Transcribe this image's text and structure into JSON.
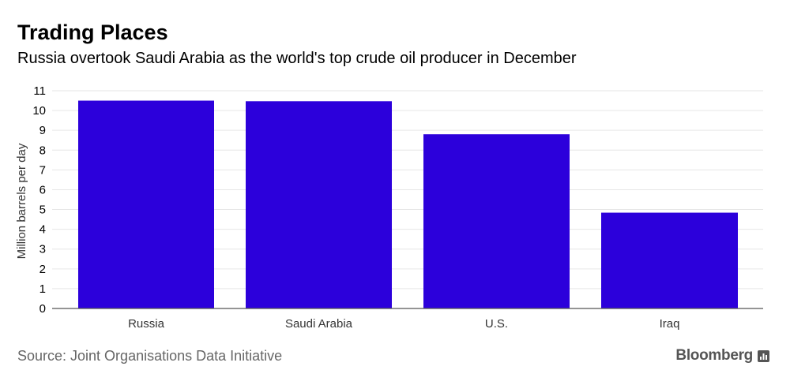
{
  "title": "Trading Places",
  "subtitle": "Russia overtook Saudi Arabia as the world's top crude oil producer in December",
  "source": "Source: Joint Organisations Data Initiative",
  "brand": {
    "name": "Bloomberg",
    "icon": "bloomberg-chart-icon"
  },
  "colors": {
    "bar": "#2c00db",
    "grid": "#e6e6e6",
    "axis": "#555555"
  },
  "chart_data": {
    "type": "bar",
    "categories": [
      "Russia",
      "Saudi Arabia",
      "U.S.",
      "Iraq"
    ],
    "values": [
      10.5,
      10.47,
      8.8,
      4.84
    ],
    "ylabel": "Million barrels per day",
    "xlabel": "",
    "ylim": [
      0,
      11
    ],
    "yticks": [
      0,
      1,
      2,
      3,
      4,
      5,
      6,
      7,
      8,
      9,
      10,
      11
    ],
    "grid": true,
    "legend": "none"
  }
}
